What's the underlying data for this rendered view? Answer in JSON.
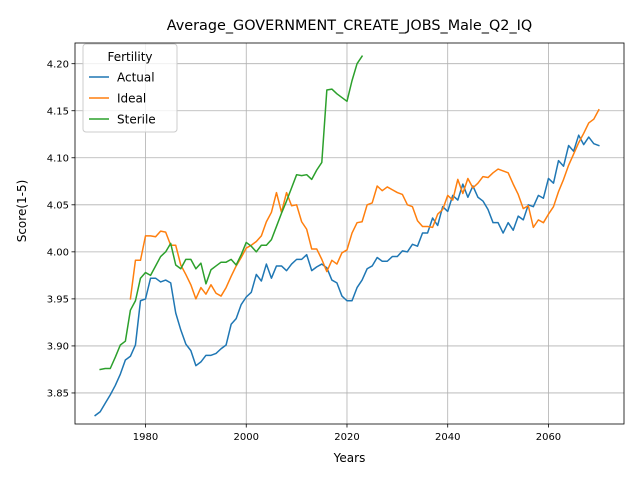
{
  "chart_data": {
    "type": "line",
    "title": "Average_GOVERNMENT_CREATE_JOBS_Male_Q2_IQ",
    "xlabel": "Years",
    "ylabel": "Score(1-5)",
    "xlim": [
      1966,
      2075
    ],
    "ylim": [
      3.817,
      4.222
    ],
    "xticks": [
      1980,
      2000,
      2020,
      2040,
      2060
    ],
    "yticks": [
      3.85,
      3.9,
      3.95,
      4.0,
      4.05,
      4.1,
      4.15,
      4.2
    ],
    "xtick_labels": [
      "1980",
      "2000",
      "2020",
      "2040",
      "2060"
    ],
    "ytick_labels": [
      "3.85",
      "3.90",
      "3.95",
      "4.00",
      "4.05",
      "4.10",
      "4.15",
      "4.20"
    ],
    "grid": true,
    "legend": {
      "title": "Fertility",
      "placement": "upper-left"
    },
    "series": [
      {
        "name": "Actual",
        "color": "#1f77b4",
        "x": [
          1970,
          1971,
          1972,
          1973,
          1974,
          1975,
          1976,
          1977,
          1978,
          1979,
          1980,
          1981,
          1982,
          1983,
          1984,
          1985,
          1986,
          1987,
          1988,
          1989,
          1990,
          1991,
          1992,
          1993,
          1994,
          1995,
          1996,
          1997,
          1998,
          1999,
          2000,
          2001,
          2002,
          2003,
          2004,
          2005,
          2006,
          2007,
          2008,
          2009,
          2010,
          2011,
          2012,
          2013,
          2014,
          2015,
          2016,
          2017,
          2018,
          2019,
          2020,
          2021,
          2022,
          2023,
          2024,
          2025,
          2026,
          2027,
          2028,
          2029,
          2030,
          2031,
          2032,
          2033,
          2034,
          2035,
          2036,
          2037,
          2038,
          2039,
          2040,
          2041,
          2042,
          2043,
          2044,
          2045,
          2046,
          2047,
          2048,
          2049,
          2050,
          2051,
          2052,
          2053,
          2054,
          2055,
          2056,
          2057,
          2058,
          2059,
          2060,
          2061,
          2062,
          2063,
          2064,
          2065,
          2066,
          2067,
          2068,
          2069,
          2070
        ],
        "y": [
          3.826,
          3.83,
          3.839,
          3.848,
          3.858,
          3.87,
          3.885,
          3.889,
          3.901,
          3.948,
          3.95,
          3.972,
          3.972,
          3.968,
          3.97,
          3.967,
          3.935,
          3.917,
          3.902,
          3.895,
          3.879,
          3.883,
          3.89,
          3.89,
          3.892,
          3.897,
          3.901,
          3.923,
          3.929,
          3.944,
          3.952,
          3.957,
          3.976,
          3.969,
          3.987,
          3.972,
          3.985,
          3.985,
          3.98,
          3.987,
          3.992,
          3.992,
          3.997,
          3.98,
          3.984,
          3.987,
          3.983,
          3.97,
          3.967,
          3.953,
          3.948,
          3.948,
          3.962,
          3.97,
          3.982,
          3.985,
          3.994,
          3.99,
          3.99,
          3.995,
          3.995,
          4.001,
          4.0,
          4.008,
          4.006,
          4.02,
          4.02,
          4.036,
          4.028,
          4.048,
          4.043,
          4.06,
          4.055,
          4.072,
          4.058,
          4.07,
          4.058,
          4.054,
          4.045,
          4.031,
          4.031,
          4.02,
          4.031,
          4.023,
          4.038,
          4.034,
          4.05,
          4.048,
          4.06,
          4.057,
          4.078,
          4.073,
          4.097,
          4.091,
          4.113,
          4.107,
          4.124,
          4.114,
          4.122,
          4.115,
          4.113
        ]
      },
      {
        "name": "Ideal",
        "color": "#ff7f0e",
        "x": [
          1977,
          1978,
          1979,
          1980,
          1981,
          1982,
          1983,
          1984,
          1985,
          1986,
          1987,
          1988,
          1989,
          1990,
          1991,
          1992,
          1993,
          1994,
          1995,
          1996,
          1997,
          1998,
          1999,
          2000,
          2001,
          2002,
          2003,
          2004,
          2005,
          2006,
          2007,
          2008,
          2009,
          2010,
          2011,
          2012,
          2013,
          2014,
          2015,
          2016,
          2017,
          2018,
          2019,
          2020,
          2021,
          2022,
          2023,
          2024,
          2025,
          2026,
          2027,
          2028,
          2029,
          2030,
          2031,
          2032,
          2033,
          2034,
          2035,
          2036,
          2037,
          2038,
          2039,
          2040,
          2041,
          2042,
          2043,
          2044,
          2045,
          2046,
          2047,
          2048,
          2049,
          2050,
          2051,
          2052,
          2053,
          2054,
          2055,
          2056,
          2057,
          2058,
          2059,
          2060,
          2061,
          2062,
          2063,
          2064,
          2065,
          2066,
          2067,
          2068,
          2069,
          2070
        ],
        "y": [
          3.95,
          3.991,
          3.991,
          4.017,
          4.017,
          4.016,
          4.022,
          4.021,
          4.007,
          4.007,
          3.986,
          3.976,
          3.965,
          3.95,
          3.962,
          3.955,
          3.965,
          3.956,
          3.953,
          3.962,
          3.974,
          3.985,
          3.994,
          4.004,
          4.007,
          4.011,
          4.017,
          4.032,
          4.042,
          4.063,
          4.042,
          4.063,
          4.049,
          4.05,
          4.032,
          4.024,
          4.003,
          4.003,
          3.992,
          3.979,
          3.991,
          3.987,
          3.999,
          4.002,
          4.02,
          4.031,
          4.032,
          4.05,
          4.052,
          4.07,
          4.065,
          4.069,
          4.066,
          4.063,
          4.061,
          4.05,
          4.048,
          4.033,
          4.027,
          4.027,
          4.026,
          4.04,
          4.045,
          4.06,
          4.055,
          4.077,
          4.062,
          4.078,
          4.068,
          4.073,
          4.08,
          4.079,
          4.084,
          4.088,
          4.086,
          4.084,
          4.072,
          4.061,
          4.046,
          4.049,
          4.026,
          4.034,
          4.031,
          4.04,
          4.048,
          4.064,
          4.077,
          4.092,
          4.104,
          4.116,
          4.126,
          4.137,
          4.141,
          4.151
        ]
      },
      {
        "name": "Sterile",
        "color": "#2ca02c",
        "x": [
          1971,
          1972,
          1973,
          1974,
          1975,
          1976,
          1977,
          1978,
          1979,
          1980,
          1981,
          1982,
          1983,
          1984,
          1985,
          1986,
          1987,
          1988,
          1989,
          1990,
          1991,
          1992,
          1993,
          1994,
          1995,
          1996,
          1997,
          1998,
          1999,
          2000,
          2001,
          2002,
          2003,
          2004,
          2005,
          2006,
          2007,
          2008,
          2009,
          2010,
          2011,
          2012,
          2013,
          2014,
          2015,
          2016,
          2017,
          2018,
          2019,
          2020,
          2021,
          2022,
          2023
        ],
        "y": [
          3.875,
          3.876,
          3.876,
          3.888,
          3.901,
          3.905,
          3.938,
          3.948,
          3.972,
          3.978,
          3.975,
          3.985,
          3.995,
          4.0,
          4.009,
          3.986,
          3.982,
          3.992,
          3.992,
          3.982,
          3.988,
          3.966,
          3.981,
          3.985,
          3.989,
          3.989,
          3.992,
          3.986,
          3.997,
          4.01,
          4.006,
          4.0,
          4.007,
          4.007,
          4.013,
          4.027,
          4.041,
          4.054,
          4.068,
          4.082,
          4.081,
          4.082,
          4.077,
          4.087,
          4.095,
          4.172,
          4.173,
          4.168,
          4.164,
          4.16,
          4.182,
          4.2,
          4.208
        ]
      }
    ]
  }
}
